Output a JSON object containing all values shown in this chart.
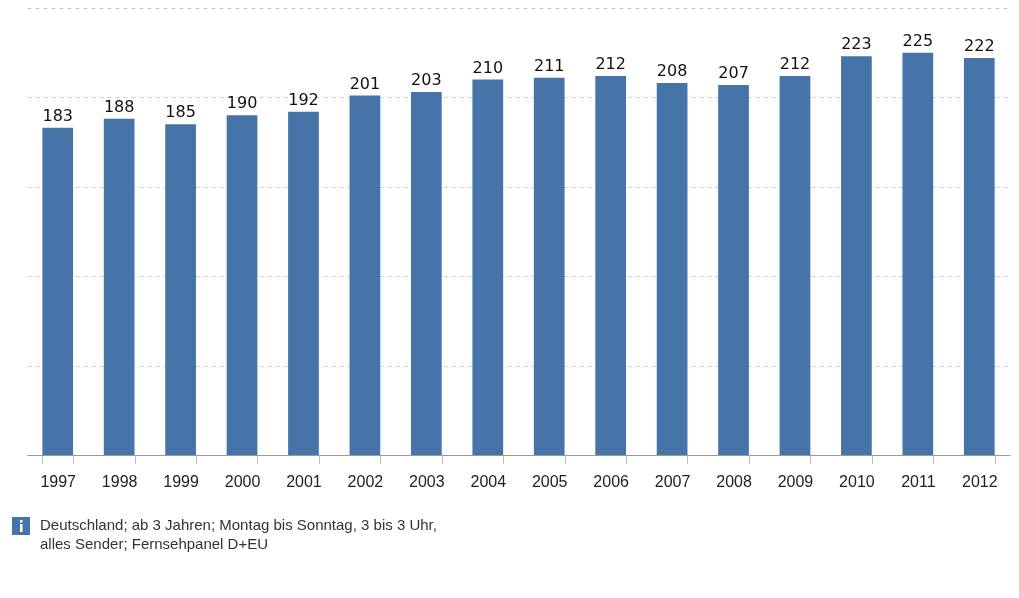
{
  "chart_data": {
    "type": "bar",
    "categories": [
      "1997",
      "1998",
      "1999",
      "2000",
      "2001",
      "2002",
      "2003",
      "2004",
      "2005",
      "2006",
      "2007",
      "2008",
      "2009",
      "2010",
      "2011",
      "2012"
    ],
    "values": [
      183,
      188,
      185,
      190,
      192,
      201,
      203,
      210,
      211,
      212,
      208,
      207,
      212,
      223,
      225,
      222
    ],
    "color": "#4674a8",
    "ylim": [
      0,
      250
    ],
    "yticks": [
      {
        "value": 0,
        "label": null
      },
      {
        "value": 50,
        "label": null
      },
      {
        "value": 100,
        "label": null
      },
      {
        "value": 150,
        "label": null
      },
      {
        "value": 200,
        "label": null
      },
      {
        "value": 250,
        "label": null
      }
    ],
    "grid": "y",
    "tick_labels": "x",
    "data_labels": true,
    "annotations": [
      "Deutschland; ab 3 Jahren; Montag bis Sonntag, 3 bis 3 Uhr, alles Sender; Fernsehpanel D+EU"
    ]
  }
}
